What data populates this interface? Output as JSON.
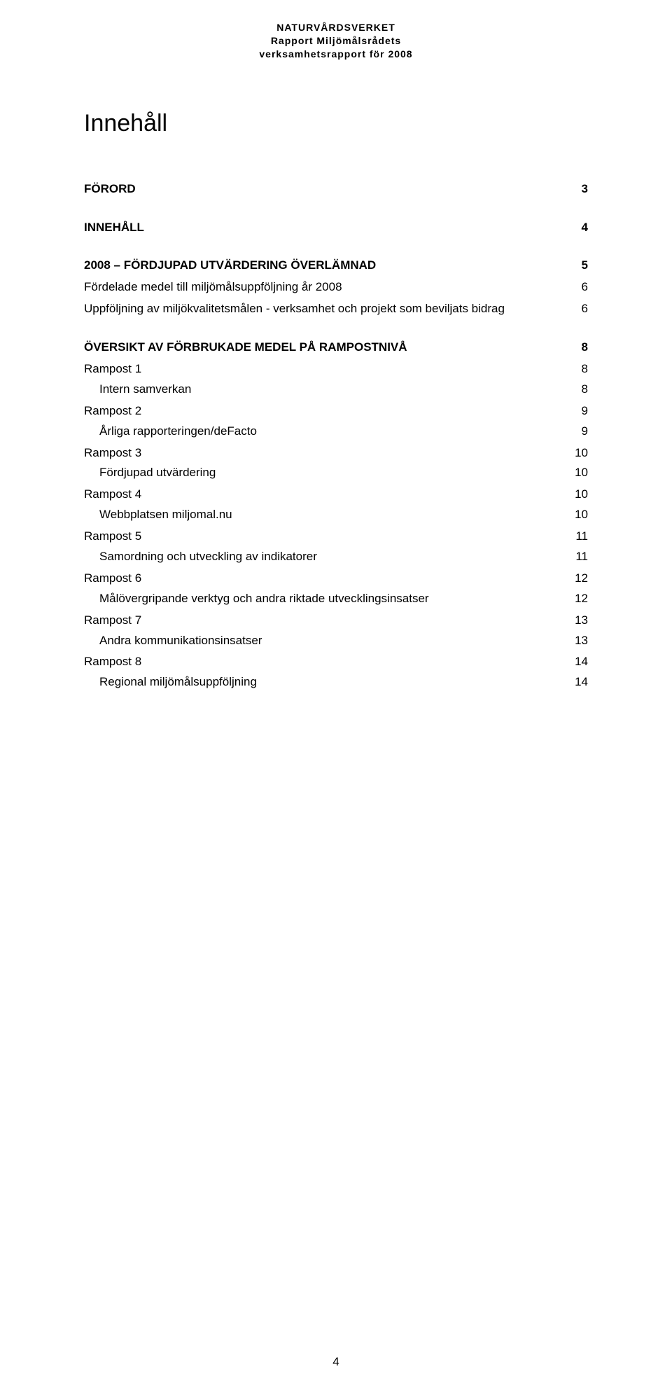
{
  "header": {
    "line1": "NATURVÅRDSVERKET",
    "line2": "Rapport Miljömålsrådets",
    "line3": "verksamhetsrapport för 2008"
  },
  "title": "Innehåll",
  "toc": [
    {
      "level": 1,
      "text": "FÖRORD",
      "page": "3"
    },
    {
      "level": 1,
      "text": "INNEHÅLL",
      "page": "4"
    },
    {
      "level": 1,
      "text": "2008 – FÖRDJUPAD UTVÄRDERING ÖVERLÄMNAD",
      "page": "5"
    },
    {
      "level": 2,
      "text": "Fördelade medel till miljömålsuppföljning  år 2008",
      "page": "6"
    },
    {
      "level": 2,
      "text": "Uppföljning av miljökvalitetsmålen  - verksamhet och projekt som beviljats bidrag",
      "page": "6"
    },
    {
      "level": 1,
      "text": "ÖVERSIKT AV FÖRBRUKADE MEDEL PÅ RAMPOSTNIVÅ",
      "page": "8"
    },
    {
      "level": 2,
      "text": "Rampost 1",
      "page": "8"
    },
    {
      "level": 3,
      "text": "Intern samverkan",
      "page": "8"
    },
    {
      "level": 2,
      "text": "Rampost 2",
      "page": "9"
    },
    {
      "level": 3,
      "text": "Årliga rapporteringen/deFacto",
      "page": "9"
    },
    {
      "level": 2,
      "text": "Rampost 3",
      "page": "10"
    },
    {
      "level": 3,
      "text": "Fördjupad utvärdering",
      "page": "10"
    },
    {
      "level": 2,
      "text": "Rampost 4",
      "page": "10"
    },
    {
      "level": 3,
      "text": "Webbplatsen miljomal.nu",
      "page": "10"
    },
    {
      "level": 2,
      "text": "Rampost 5",
      "page": "11"
    },
    {
      "level": 3,
      "text": "Samordning och utveckling av indikatorer",
      "page": "11"
    },
    {
      "level": 2,
      "text": "Rampost 6",
      "page": "12"
    },
    {
      "level": 3,
      "text": "Målövergripande verktyg och andra riktade utvecklingsinsatser",
      "page": "12"
    },
    {
      "level": 2,
      "text": "Rampost 7",
      "page": "13"
    },
    {
      "level": 3,
      "text": "Andra kommunikationsinsatser",
      "page": "13"
    },
    {
      "level": 2,
      "text": "Rampost 8",
      "page": "14"
    },
    {
      "level": 3,
      "text": "Regional miljömålsuppföljning",
      "page": "14"
    }
  ],
  "page_number": "4"
}
